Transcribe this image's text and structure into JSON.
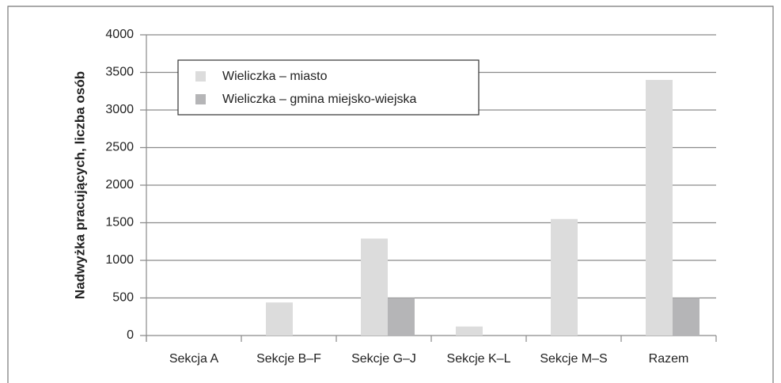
{
  "chart_data": {
    "type": "bar",
    "ylabel": "Nadwyżka pracujących, liczba osób",
    "categories": [
      "Sekcja A",
      "Sekcje B–F",
      "Sekcje G–J",
      "Sekcje K–L",
      "Sekcje M–S",
      "Razem"
    ],
    "series": [
      {
        "name": "Wieliczka – miasto",
        "color": "#dcdcdc",
        "values": [
          0,
          440,
          1290,
          120,
          1550,
          3400
        ]
      },
      {
        "name": "Wieliczka – gmina miejsko-wiejska",
        "color": "#b5b5b7",
        "values": [
          0,
          0,
          500,
          0,
          0,
          500
        ]
      }
    ],
    "ylim": [
      0,
      4000
    ],
    "yticks": [
      0,
      500,
      1000,
      1500,
      2000,
      2500,
      3000,
      3500,
      4000
    ],
    "grid": true,
    "legend": "top-left"
  }
}
